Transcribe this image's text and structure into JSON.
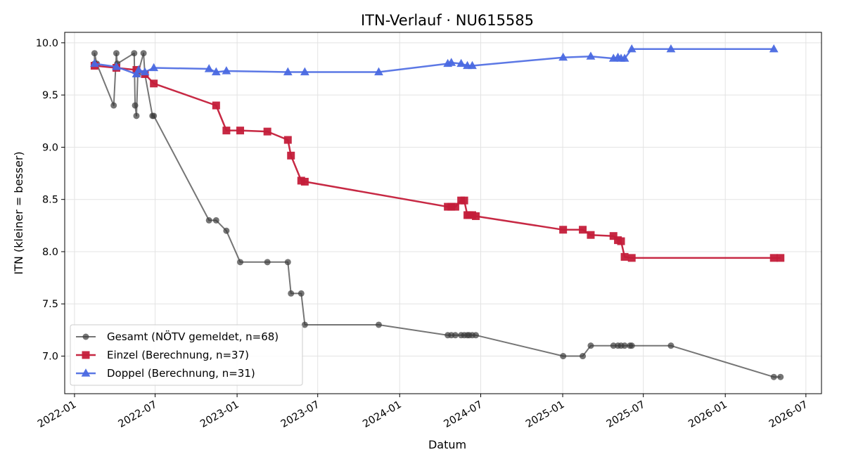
{
  "chart_data": {
    "type": "line",
    "title": "ITN-Verlauf · NU615585",
    "xlabel": "Datum",
    "ylabel": "ITN  (kleiner = besser)",
    "x_range": [
      "2021-12-10",
      "2026-08-05"
    ],
    "ylim": [
      6.64,
      10.1
    ],
    "x_ticks": [
      {
        "date": "2022-01-01",
        "label": "2022-01"
      },
      {
        "date": "2022-07-01",
        "label": "2022-07"
      },
      {
        "date": "2023-01-01",
        "label": "2023-01"
      },
      {
        "date": "2023-07-01",
        "label": "2023-07"
      },
      {
        "date": "2024-01-01",
        "label": "2024-01"
      },
      {
        "date": "2024-07-01",
        "label": "2024-07"
      },
      {
        "date": "2025-01-01",
        "label": "2025-01"
      },
      {
        "date": "2025-07-01",
        "label": "2025-07"
      },
      {
        "date": "2026-01-01",
        "label": "2026-01"
      },
      {
        "date": "2026-07-01",
        "label": "2026-07"
      }
    ],
    "y_ticks": [
      {
        "value": 7.0,
        "label": "7.0"
      },
      {
        "value": 7.5,
        "label": "7.5"
      },
      {
        "value": 8.0,
        "label": "8.0"
      },
      {
        "value": 8.5,
        "label": "8.5"
      },
      {
        "value": 9.0,
        "label": "9.0"
      },
      {
        "value": 9.5,
        "label": "9.5"
      },
      {
        "value": 10.0,
        "label": "10.0"
      }
    ],
    "grid": true,
    "legend_position": "lower-left",
    "series": [
      {
        "name": "Gesamt (NÖTV gemeldet, n=68)",
        "color": "#3a3a3a",
        "marker": "circle",
        "x": [
          "2022-02-15",
          "2022-02-15",
          "2022-02-20",
          "2022-03-30",
          "2022-04-05",
          "2022-04-07",
          "2022-05-15",
          "2022-05-17",
          "2022-05-20",
          "2022-05-23",
          "2022-06-05",
          "2022-06-08",
          "2022-06-25",
          "2022-06-28",
          "2022-10-30",
          "2022-11-15",
          "2022-12-08",
          "2023-01-08",
          "2023-03-10",
          "2023-04-25",
          "2023-05-02",
          "2023-05-25",
          "2023-06-02",
          "2023-11-15",
          "2024-04-18",
          "2024-04-26",
          "2024-05-05",
          "2024-05-18",
          "2024-05-25",
          "2024-06-01",
          "2024-06-05",
          "2024-06-12",
          "2024-06-20",
          "2025-01-02",
          "2025-02-15",
          "2025-03-05",
          "2025-04-25",
          "2025-05-05",
          "2025-05-12",
          "2025-05-20",
          "2025-06-01",
          "2025-06-05",
          "2025-09-01",
          "2026-04-20",
          "2026-05-05"
        ],
        "y": [
          9.8,
          9.9,
          9.8,
          9.4,
          9.9,
          9.8,
          9.9,
          9.4,
          9.3,
          9.7,
          9.9,
          9.7,
          9.3,
          9.3,
          8.3,
          8.3,
          8.2,
          7.9,
          7.9,
          7.9,
          7.6,
          7.6,
          7.3,
          7.3,
          7.2,
          7.2,
          7.2,
          7.2,
          7.2,
          7.2,
          7.2,
          7.2,
          7.2,
          7.0,
          7.0,
          7.1,
          7.1,
          7.1,
          7.1,
          7.1,
          7.1,
          7.1,
          7.1,
          6.8,
          6.8
        ]
      },
      {
        "name": "Einzel (Berechnung, n=37)",
        "color": "#c41e3a",
        "marker": "square",
        "x": [
          "2022-02-15",
          "2022-04-05",
          "2022-05-20",
          "2022-06-08",
          "2022-06-28",
          "2022-11-15",
          "2022-12-08",
          "2023-01-08",
          "2023-03-10",
          "2023-04-25",
          "2023-05-02",
          "2023-05-25",
          "2023-06-02",
          "2024-04-18",
          "2024-04-26",
          "2024-05-05",
          "2024-05-18",
          "2024-05-25",
          "2024-06-01",
          "2024-06-05",
          "2024-06-12",
          "2024-06-20",
          "2025-01-02",
          "2025-02-15",
          "2025-03-05",
          "2025-04-25",
          "2025-05-05",
          "2025-05-12",
          "2025-05-20",
          "2025-06-05",
          "2026-04-20",
          "2026-05-05"
        ],
        "y": [
          9.78,
          9.76,
          9.74,
          9.7,
          9.61,
          9.4,
          9.16,
          9.16,
          9.15,
          9.07,
          8.92,
          8.68,
          8.67,
          8.43,
          8.43,
          8.43,
          8.49,
          8.49,
          8.35,
          8.35,
          8.35,
          8.34,
          8.21,
          8.21,
          8.16,
          8.15,
          8.11,
          8.1,
          7.95,
          7.94,
          7.94,
          7.94
        ]
      },
      {
        "name": "Doppel (Berechnung, n=31)",
        "color": "#4a69e2",
        "marker": "triangle",
        "x": [
          "2022-02-15",
          "2022-04-05",
          "2022-05-20",
          "2022-05-25",
          "2022-06-08",
          "2022-06-28",
          "2022-10-30",
          "2022-11-15",
          "2022-12-08",
          "2023-04-25",
          "2023-06-02",
          "2023-11-15",
          "2024-04-18",
          "2024-04-26",
          "2024-05-18",
          "2024-06-01",
          "2024-06-12",
          "2025-01-02",
          "2025-03-05",
          "2025-04-25",
          "2025-05-05",
          "2025-05-12",
          "2025-05-20",
          "2025-06-05",
          "2025-09-01",
          "2026-04-20"
        ],
        "y": [
          9.8,
          9.77,
          9.7,
          9.74,
          9.72,
          9.76,
          9.75,
          9.72,
          9.73,
          9.72,
          9.72,
          9.72,
          9.8,
          9.81,
          9.8,
          9.78,
          9.78,
          9.86,
          9.87,
          9.85,
          9.86,
          9.85,
          9.85,
          9.94,
          9.94,
          9.94
        ]
      }
    ]
  }
}
